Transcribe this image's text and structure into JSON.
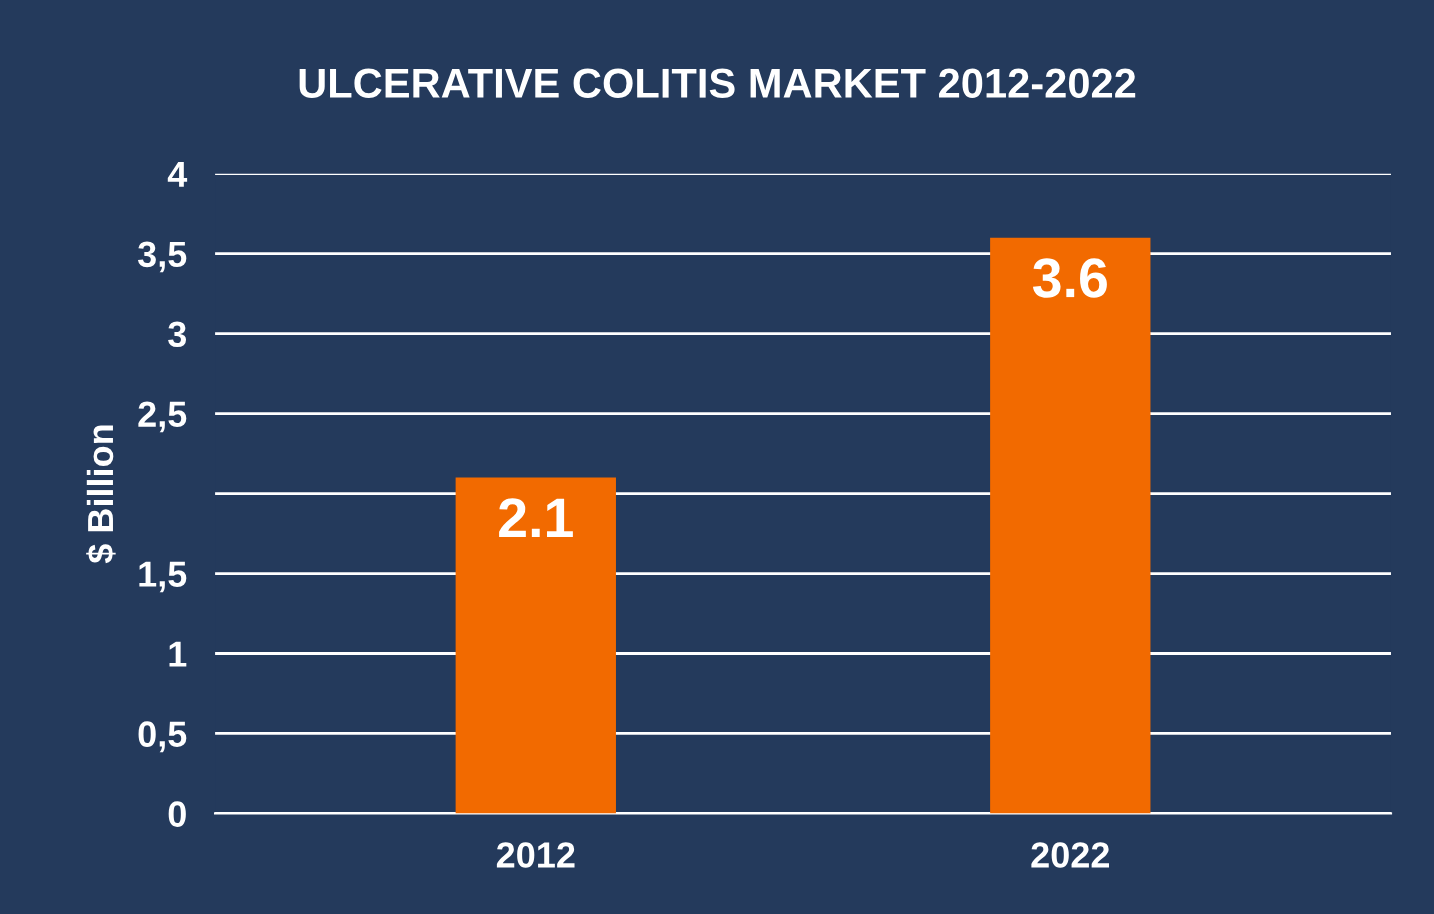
{
  "chart_data": {
    "type": "bar",
    "title": "ULCERATIVE COLITIS MARKET 2012-2022",
    "ylabel": "$ Billion",
    "categories": [
      "2012",
      "2022"
    ],
    "values": [
      2.1,
      3.6
    ],
    "color": "#f26a00",
    "data_labels": true,
    "ylim": [
      0,
      4
    ],
    "yticks": [
      0,
      {
        "value": 0.5,
        "label": "0,5"
      },
      1,
      {
        "value": 1.5,
        "label": "1,5"
      },
      {
        "value": 2,
        "label": null
      },
      {
        "value": 2.5,
        "label": "2,5"
      },
      3,
      {
        "value": 3.5,
        "label": "3,5"
      },
      4
    ],
    "grid": "y"
  }
}
